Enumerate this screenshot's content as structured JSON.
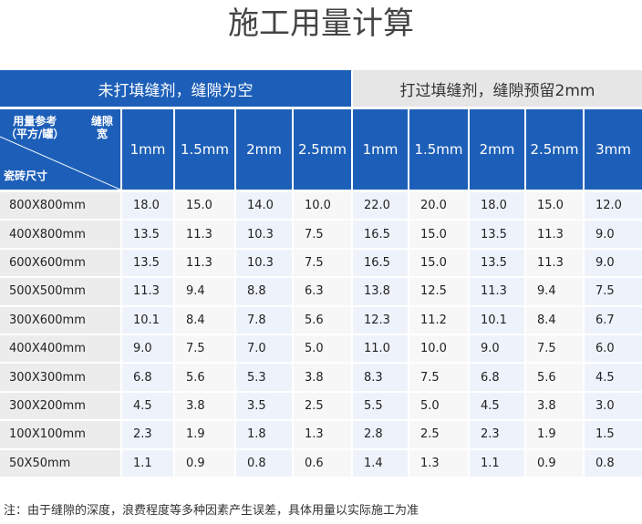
{
  "title": "施工用量计算",
  "groups": [
    "未打填缝剂，缝隙为空",
    "打过填缝剂，缝隙预留2mm"
  ],
  "corner": {
    "top_left": [
      "用量参考",
      "（平方/罐）"
    ],
    "top_right": [
      "缝隙",
      "宽"
    ],
    "bottom_left": "瓷砖尺寸"
  },
  "columns": [
    "1mm",
    "1.5mm",
    "2mm",
    "2.5mm",
    "1mm",
    "1.5mm",
    "2mm",
    "2.5mm",
    "3mm"
  ],
  "rows": [
    [
      "800X800mm",
      "18.0",
      "15.0",
      "14.0",
      "10.0",
      "22.0",
      "20.0",
      "18.0",
      "15.0",
      "12.0"
    ],
    [
      "400X800mm",
      "13.5",
      "11.3",
      "10.3",
      "7.5",
      "16.5",
      "15.0",
      "13.5",
      "11.3",
      "9.0"
    ],
    [
      "600X600mm",
      "13.5",
      "11.3",
      "10.3",
      "7.5",
      "16.5",
      "15.0",
      "13.5",
      "11.3",
      "9.0"
    ],
    [
      "500X500mm",
      "11.3",
      "9.4",
      "8.8",
      "6.3",
      "13.8",
      "12.5",
      "11.3",
      "9.4",
      "7.5"
    ],
    [
      "300X600mm",
      "10.1",
      "8.4",
      "7.8",
      "5.6",
      "12.3",
      "11.2",
      "10.1",
      "8.4",
      "6.7"
    ],
    [
      "400X400mm",
      "9.0",
      "7.5",
      "7.0",
      "5.0",
      "11.0",
      "10.0",
      "9.0",
      "7.5",
      "6.0"
    ],
    [
      "300X300mm",
      "6.8",
      "5.6",
      "5.3",
      "3.8",
      "8.3",
      "7.5",
      "6.8",
      "5.6",
      "4.5"
    ],
    [
      "300X200mm",
      "4.5",
      "3.8",
      "3.5",
      "2.5",
      "5.5",
      "5.0",
      "4.5",
      "3.8",
      "3.0"
    ],
    [
      "100X100mm",
      "2.3",
      "1.9",
      "1.8",
      "1.3",
      "2.8",
      "2.5",
      "2.3",
      "1.9",
      "1.5"
    ],
    [
      "50X50mm",
      "1.1",
      "0.9",
      "0.8",
      "0.6",
      "1.4",
      "1.3",
      "1.1",
      "0.9",
      "0.8"
    ]
  ],
  "note": "注：由于缝隙的深度，浪费程度等多种因素产生误差，具体用量以实际施工为准"
}
